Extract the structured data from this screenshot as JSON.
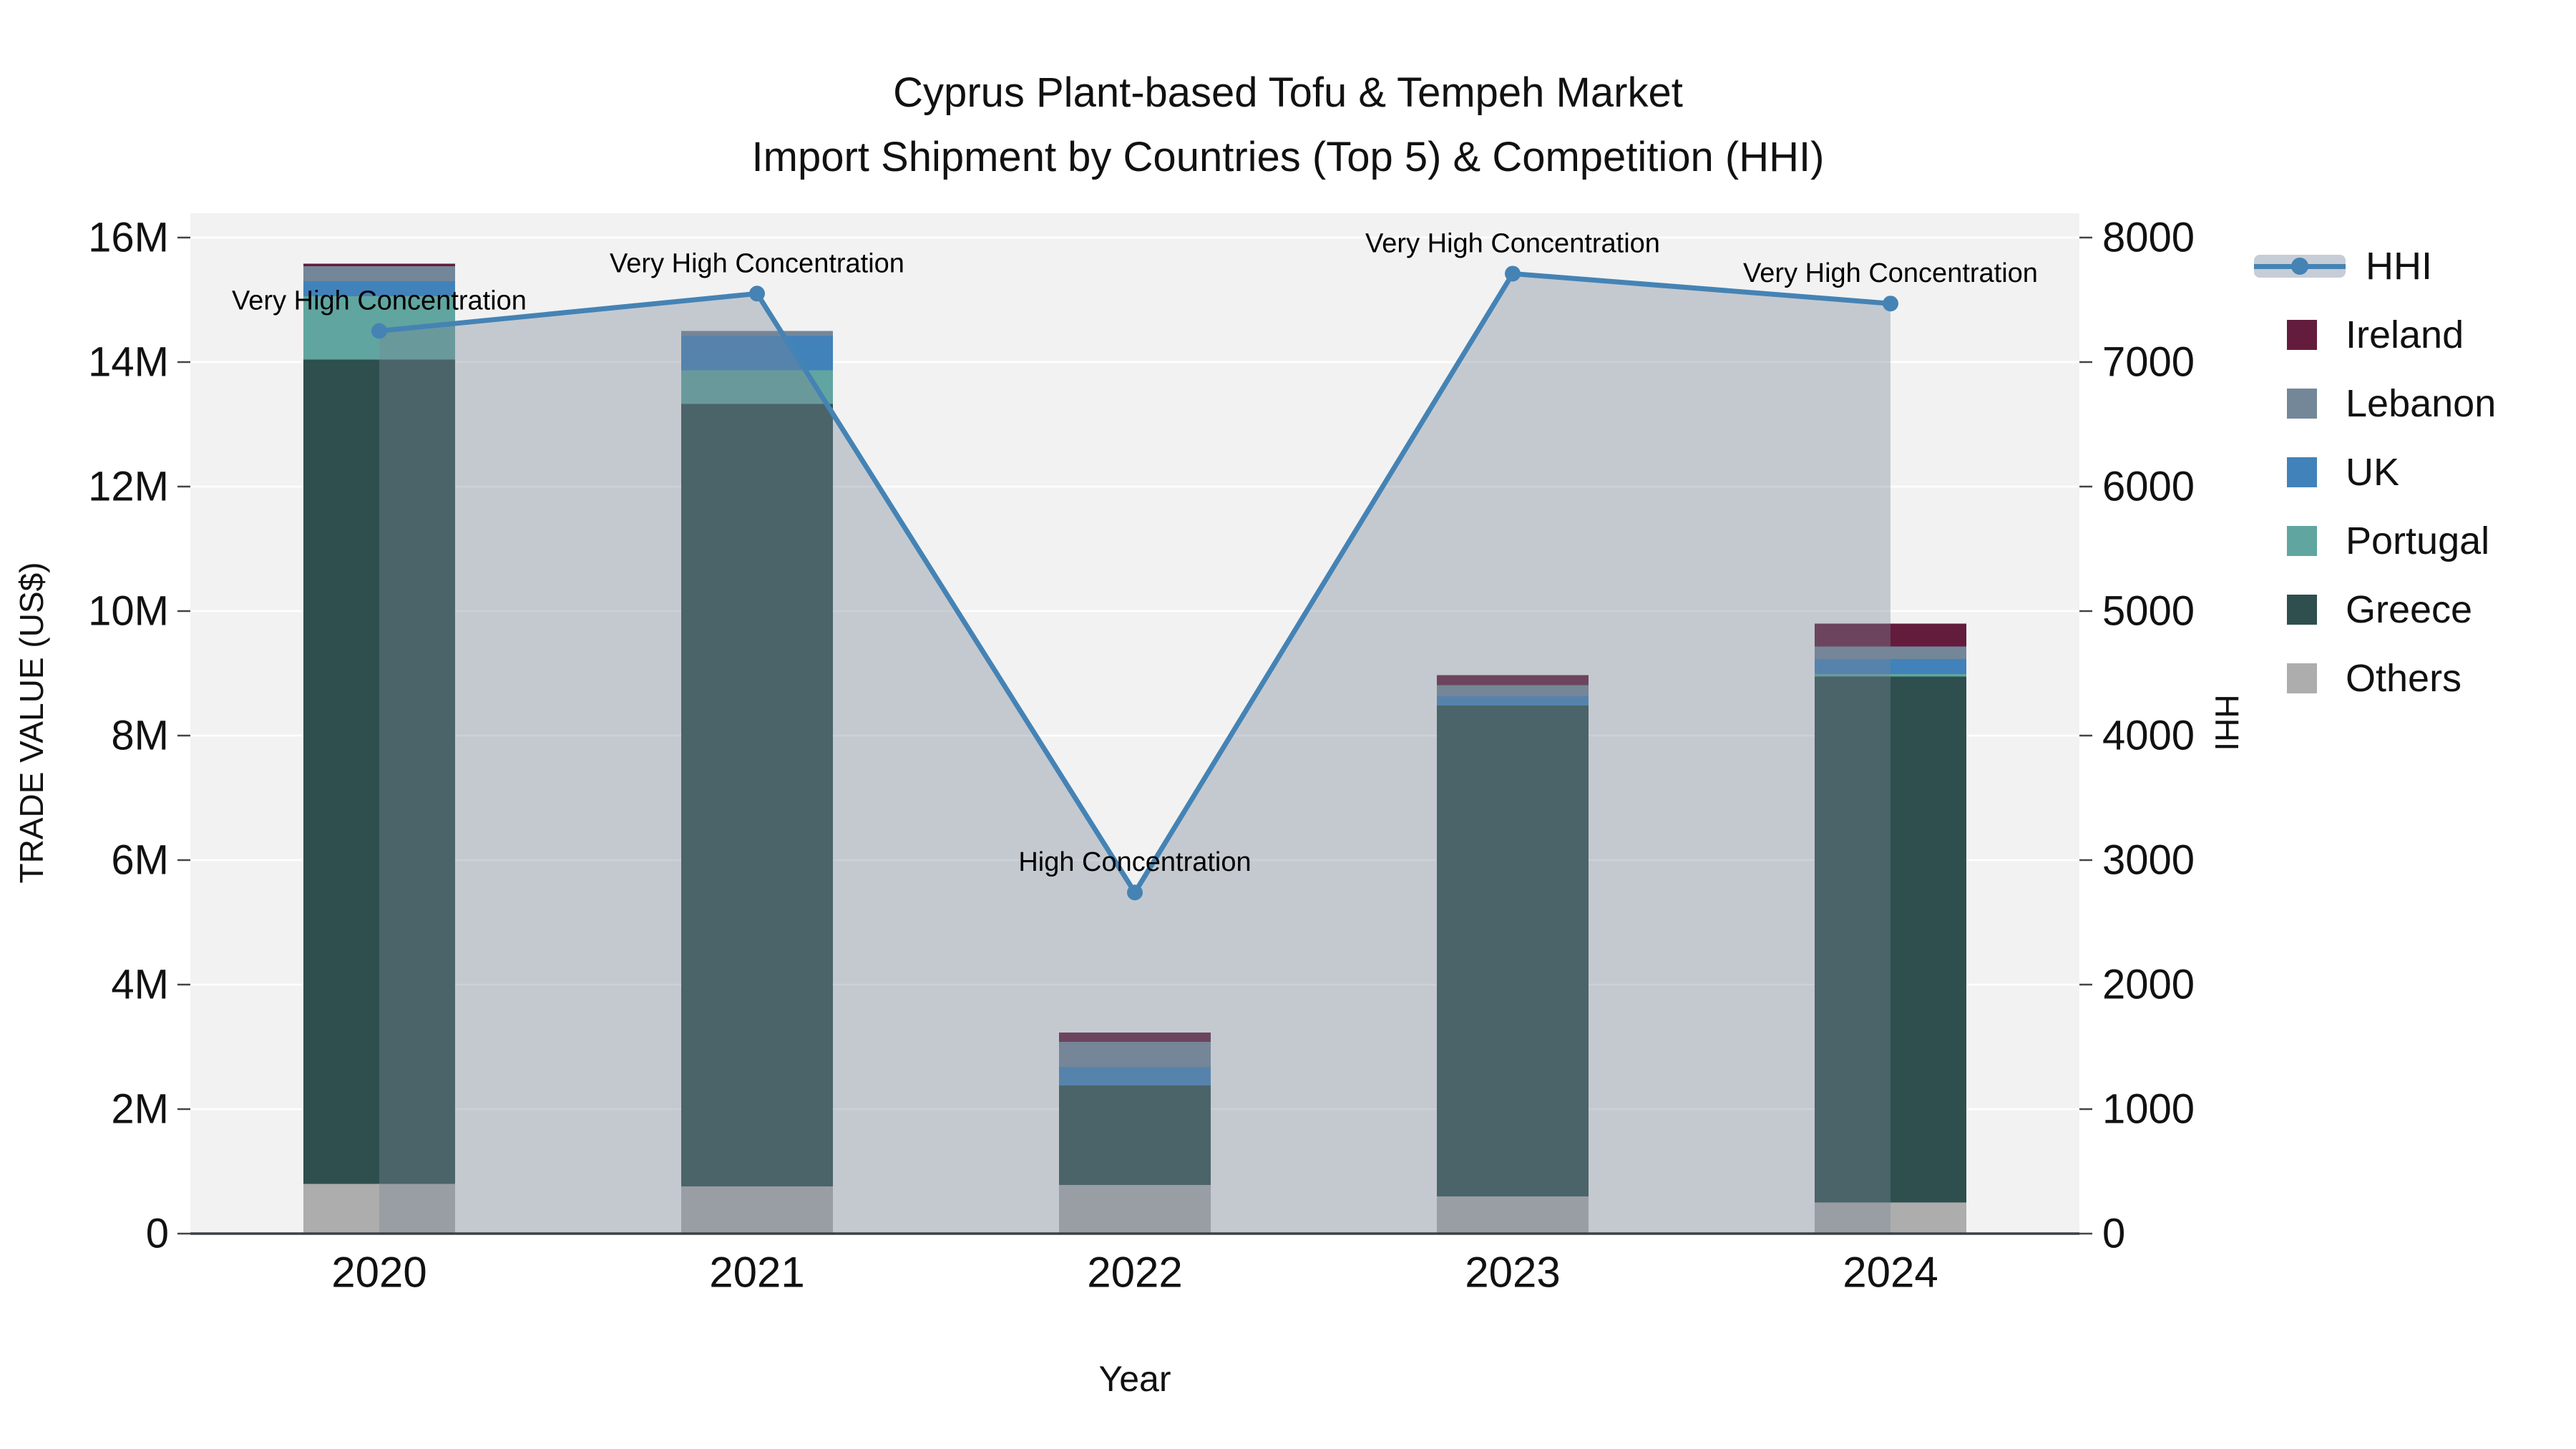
{
  "title": {
    "line1": "Cyprus Plant-based Tofu & Tempeh Market",
    "line2": "Import Shipment by Countries (Top 5) & Competition (HHI)"
  },
  "chart_data": {
    "type": "bar+line",
    "title": "Cyprus Plant-based Tofu & Tempeh Market — Import Shipment by Countries (Top 5) & Competition (HHI)",
    "categories": [
      "2020",
      "2021",
      "2022",
      "2023",
      "2024"
    ],
    "bar_unit": "million US$",
    "series": [
      {
        "name": "Others",
        "color": "#adadad",
        "values": [
          0.8,
          0.76,
          0.78,
          0.6,
          0.5
        ]
      },
      {
        "name": "Greece",
        "color": "#2e4f4e",
        "values": [
          13.24,
          12.57,
          1.6,
          7.88,
          8.45
        ]
      },
      {
        "name": "Portugal",
        "color": "#61a5a0",
        "values": [
          1.02,
          0.54,
          0.0,
          0.0,
          0.04
        ]
      },
      {
        "name": "UK",
        "color": "#4182ba",
        "values": [
          0.24,
          0.55,
          0.3,
          0.15,
          0.24
        ]
      },
      {
        "name": "Lebanon",
        "color": "#738799",
        "values": [
          0.24,
          0.08,
          0.4,
          0.18,
          0.2
        ]
      },
      {
        "name": "Ireland",
        "color": "#641c3d",
        "values": [
          0.04,
          0.0,
          0.15,
          0.16,
          0.37
        ]
      }
    ],
    "bar_totals": [
      15.58,
      14.5,
      3.23,
      8.97,
      9.8
    ],
    "line_series": {
      "name": "HHI",
      "color": "#4583b5",
      "area_fill": "rgba(120,135,150,0.38)",
      "values": [
        7250,
        7550,
        2740,
        7710,
        7470
      ]
    },
    "annotations": [
      {
        "x": "2020",
        "text": "Very High Concentration"
      },
      {
        "x": "2021",
        "text": "Very High Concentration"
      },
      {
        "x": "2022",
        "text": "High Concentration"
      },
      {
        "x": "2023",
        "text": "Very High Concentration"
      },
      {
        "x": "2024",
        "text": "Very High Concentration"
      }
    ],
    "axes": {
      "left": {
        "title": "TRADE VALUE (US$)",
        "ticks": [
          "0",
          "2M",
          "4M",
          "6M",
          "8M",
          "10M",
          "12M",
          "14M",
          "16M"
        ],
        "range_millions": [
          0,
          16.4
        ],
        "grid": true
      },
      "right": {
        "title": "HHI",
        "ticks": [
          "0",
          "1000",
          "2000",
          "3000",
          "4000",
          "5000",
          "6000",
          "7000",
          "8000"
        ],
        "range": [
          0,
          8200
        ]
      },
      "x": {
        "title": "Year"
      }
    },
    "legend_position": "right",
    "legend": [
      {
        "label": "HHI",
        "type": "line",
        "color": "#4583b5"
      },
      {
        "label": "Ireland",
        "type": "square",
        "color": "#641c3d"
      },
      {
        "label": "Lebanon",
        "type": "square",
        "color": "#738799"
      },
      {
        "label": "UK",
        "type": "square",
        "color": "#4182ba"
      },
      {
        "label": "Portugal",
        "type": "square",
        "color": "#61a5a0"
      },
      {
        "label": "Greece",
        "type": "square",
        "color": "#2e4f4e"
      },
      {
        "label": "Others",
        "type": "square",
        "color": "#adadad"
      }
    ],
    "plot_background": "#f2f2f2",
    "gridline_color": "#ffffff",
    "axis_line_color": "#3b4046"
  }
}
